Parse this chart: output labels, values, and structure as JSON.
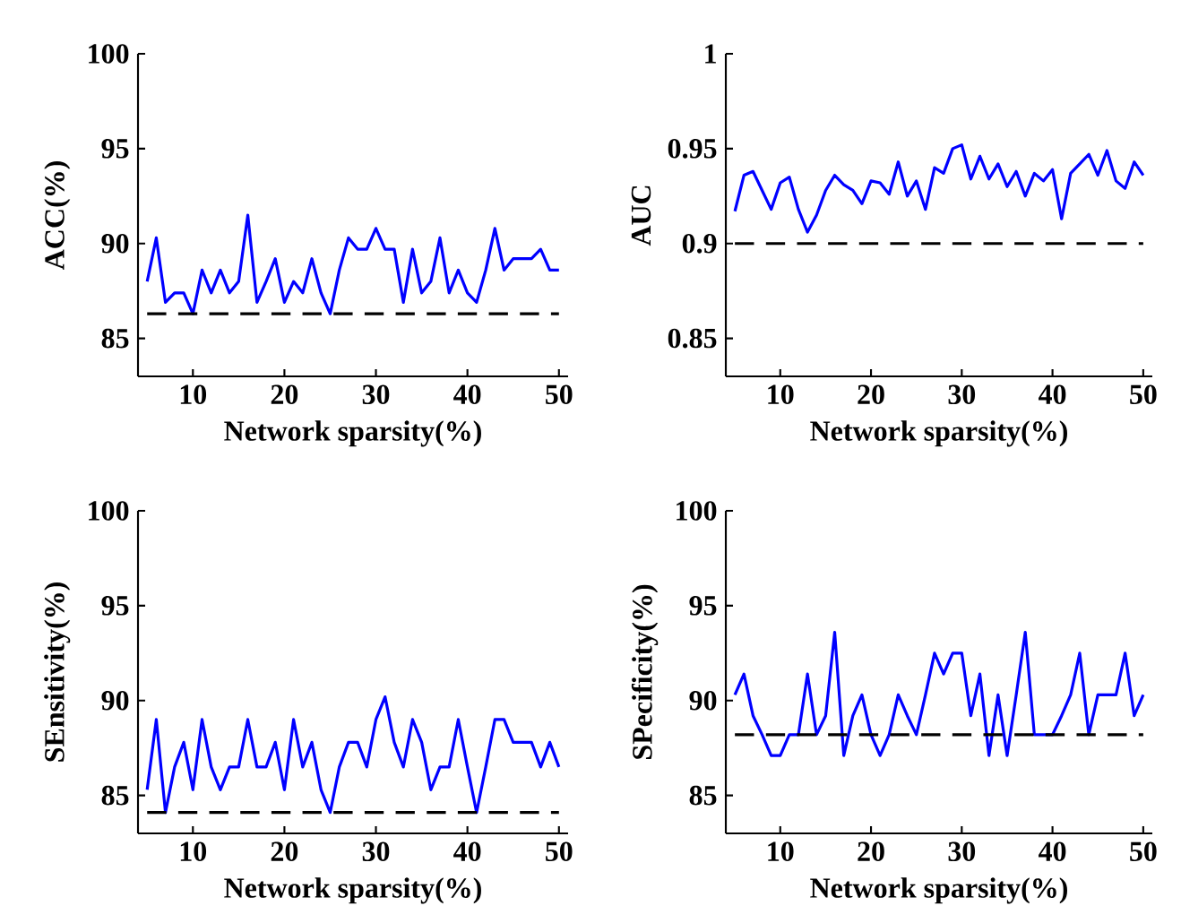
{
  "chart_data": [
    {
      "type": "line",
      "xlabel": "Network sparsity(%)",
      "ylabel": "ACC(%)",
      "xlim": [
        4,
        51
      ],
      "xticks": [
        10,
        20,
        30,
        40,
        50
      ],
      "ylim": [
        83,
        100
      ],
      "yticks": [
        85,
        90,
        95,
        100
      ],
      "grid": false,
      "x": [
        5,
        6,
        7,
        8,
        9,
        10,
        11,
        12,
        13,
        14,
        15,
        16,
        17,
        18,
        19,
        20,
        21,
        22,
        23,
        24,
        25,
        26,
        27,
        28,
        29,
        30,
        31,
        32,
        33,
        34,
        35,
        36,
        37,
        38,
        39,
        40,
        41,
        42,
        43,
        44,
        45,
        46,
        47,
        48,
        49,
        50
      ],
      "series": [
        {
          "color": "#0000ff",
          "values": [
            88.0,
            90.3,
            86.9,
            87.4,
            87.4,
            86.3,
            88.6,
            87.4,
            88.6,
            87.4,
            88.0,
            91.5,
            86.9,
            88.0,
            89.2,
            86.9,
            88.0,
            87.4,
            89.2,
            87.4,
            86.3,
            88.6,
            90.3,
            89.7,
            89.7,
            90.8,
            89.7,
            89.7,
            86.9,
            89.7,
            87.4,
            88.0,
            90.3,
            87.4,
            88.6,
            87.4,
            86.9,
            88.6,
            90.8,
            88.6,
            89.2,
            89.2,
            89.2,
            89.7,
            88.6,
            88.6
          ]
        }
      ],
      "ref_lines": [
        {
          "axis": "y",
          "value": 86.3,
          "color": "#000000",
          "line_style": "dashed"
        }
      ]
    },
    {
      "type": "line",
      "xlabel": "Network sparsity(%)",
      "ylabel": "AUC",
      "xlim": [
        4,
        51
      ],
      "xticks": [
        10,
        20,
        30,
        40,
        50
      ],
      "ylim": [
        0.83,
        1
      ],
      "yticks": [
        0.85,
        0.9,
        0.95,
        1
      ],
      "grid": false,
      "x": [
        5,
        6,
        7,
        8,
        9,
        10,
        11,
        12,
        13,
        14,
        15,
        16,
        17,
        18,
        19,
        20,
        21,
        22,
        23,
        24,
        25,
        26,
        27,
        28,
        29,
        30,
        31,
        32,
        33,
        34,
        35,
        36,
        37,
        38,
        39,
        40,
        41,
        42,
        43,
        44,
        45,
        46,
        47,
        48,
        49,
        50
      ],
      "series": [
        {
          "color": "#0000ff",
          "values": [
            0.917,
            0.936,
            0.938,
            0.928,
            0.918,
            0.932,
            0.935,
            0.918,
            0.906,
            0.915,
            0.928,
            0.936,
            0.931,
            0.928,
            0.921,
            0.933,
            0.932,
            0.926,
            0.943,
            0.925,
            0.933,
            0.918,
            0.94,
            0.937,
            0.95,
            0.952,
            0.934,
            0.946,
            0.934,
            0.942,
            0.93,
            0.938,
            0.925,
            0.937,
            0.933,
            0.939,
            0.913,
            0.937,
            0.942,
            0.947,
            0.936,
            0.949,
            0.933,
            0.929,
            0.943,
            0.936
          ]
        }
      ],
      "ref_lines": [
        {
          "axis": "y",
          "value": 0.9,
          "color": "#000000",
          "line_style": "dashed"
        }
      ]
    },
    {
      "type": "line",
      "xlabel": "Network sparsity(%)",
      "ylabel": "SEnsitivity(%)",
      "xlim": [
        4,
        51
      ],
      "xticks": [
        10,
        20,
        30,
        40,
        50
      ],
      "ylim": [
        83,
        100
      ],
      "yticks": [
        85,
        90,
        95,
        100
      ],
      "grid": false,
      "x": [
        5,
        6,
        7,
        8,
        9,
        10,
        11,
        12,
        13,
        14,
        15,
        16,
        17,
        18,
        19,
        20,
        21,
        22,
        23,
        24,
        25,
        26,
        27,
        28,
        29,
        30,
        31,
        32,
        33,
        34,
        35,
        36,
        37,
        38,
        39,
        40,
        41,
        42,
        43,
        44,
        45,
        46,
        47,
        48,
        49,
        50
      ],
      "series": [
        {
          "color": "#0000ff",
          "values": [
            85.3,
            89.0,
            84.1,
            86.5,
            87.8,
            85.3,
            89.0,
            86.5,
            85.3,
            86.5,
            86.5,
            89.0,
            86.5,
            86.5,
            87.8,
            85.3,
            89.0,
            86.5,
            87.8,
            85.3,
            84.1,
            86.5,
            87.8,
            87.8,
            86.5,
            89.0,
            90.2,
            87.8,
            86.5,
            89.0,
            87.8,
            85.3,
            86.5,
            86.5,
            89.0,
            86.5,
            84.1,
            86.5,
            89.0,
            89.0,
            87.8,
            87.8,
            87.8,
            86.5,
            87.8,
            86.5
          ]
        }
      ],
      "ref_lines": [
        {
          "axis": "y",
          "value": 84.1,
          "color": "#000000",
          "line_style": "dashed"
        }
      ]
    },
    {
      "type": "line",
      "xlabel": "Network sparsity(%)",
      "ylabel": "SPecificity(%)",
      "xlim": [
        4,
        51
      ],
      "xticks": [
        10,
        20,
        30,
        40,
        50
      ],
      "ylim": [
        83,
        100
      ],
      "yticks": [
        85,
        90,
        95,
        100
      ],
      "grid": false,
      "x": [
        5,
        6,
        7,
        8,
        9,
        10,
        11,
        12,
        13,
        14,
        15,
        16,
        17,
        18,
        19,
        20,
        21,
        22,
        23,
        24,
        25,
        26,
        27,
        28,
        29,
        30,
        31,
        32,
        33,
        34,
        35,
        36,
        37,
        38,
        39,
        40,
        41,
        42,
        43,
        44,
        45,
        46,
        47,
        48,
        49,
        50
      ],
      "series": [
        {
          "color": "#0000ff",
          "values": [
            90.3,
            91.4,
            89.2,
            88.2,
            87.1,
            87.1,
            88.2,
            88.2,
            91.4,
            88.2,
            89.2,
            93.6,
            87.1,
            89.2,
            90.3,
            88.2,
            87.1,
            88.2,
            90.3,
            89.2,
            88.2,
            90.3,
            92.5,
            91.4,
            92.5,
            92.5,
            89.2,
            91.4,
            87.1,
            90.3,
            87.1,
            90.3,
            93.6,
            88.2,
            88.2,
            88.2,
            89.2,
            90.3,
            92.5,
            88.2,
            90.3,
            90.3,
            90.3,
            92.5,
            89.2,
            90.3
          ]
        }
      ],
      "ref_lines": [
        {
          "axis": "y",
          "value": 88.2,
          "color": "#000000",
          "line_style": "dashed"
        }
      ]
    }
  ]
}
